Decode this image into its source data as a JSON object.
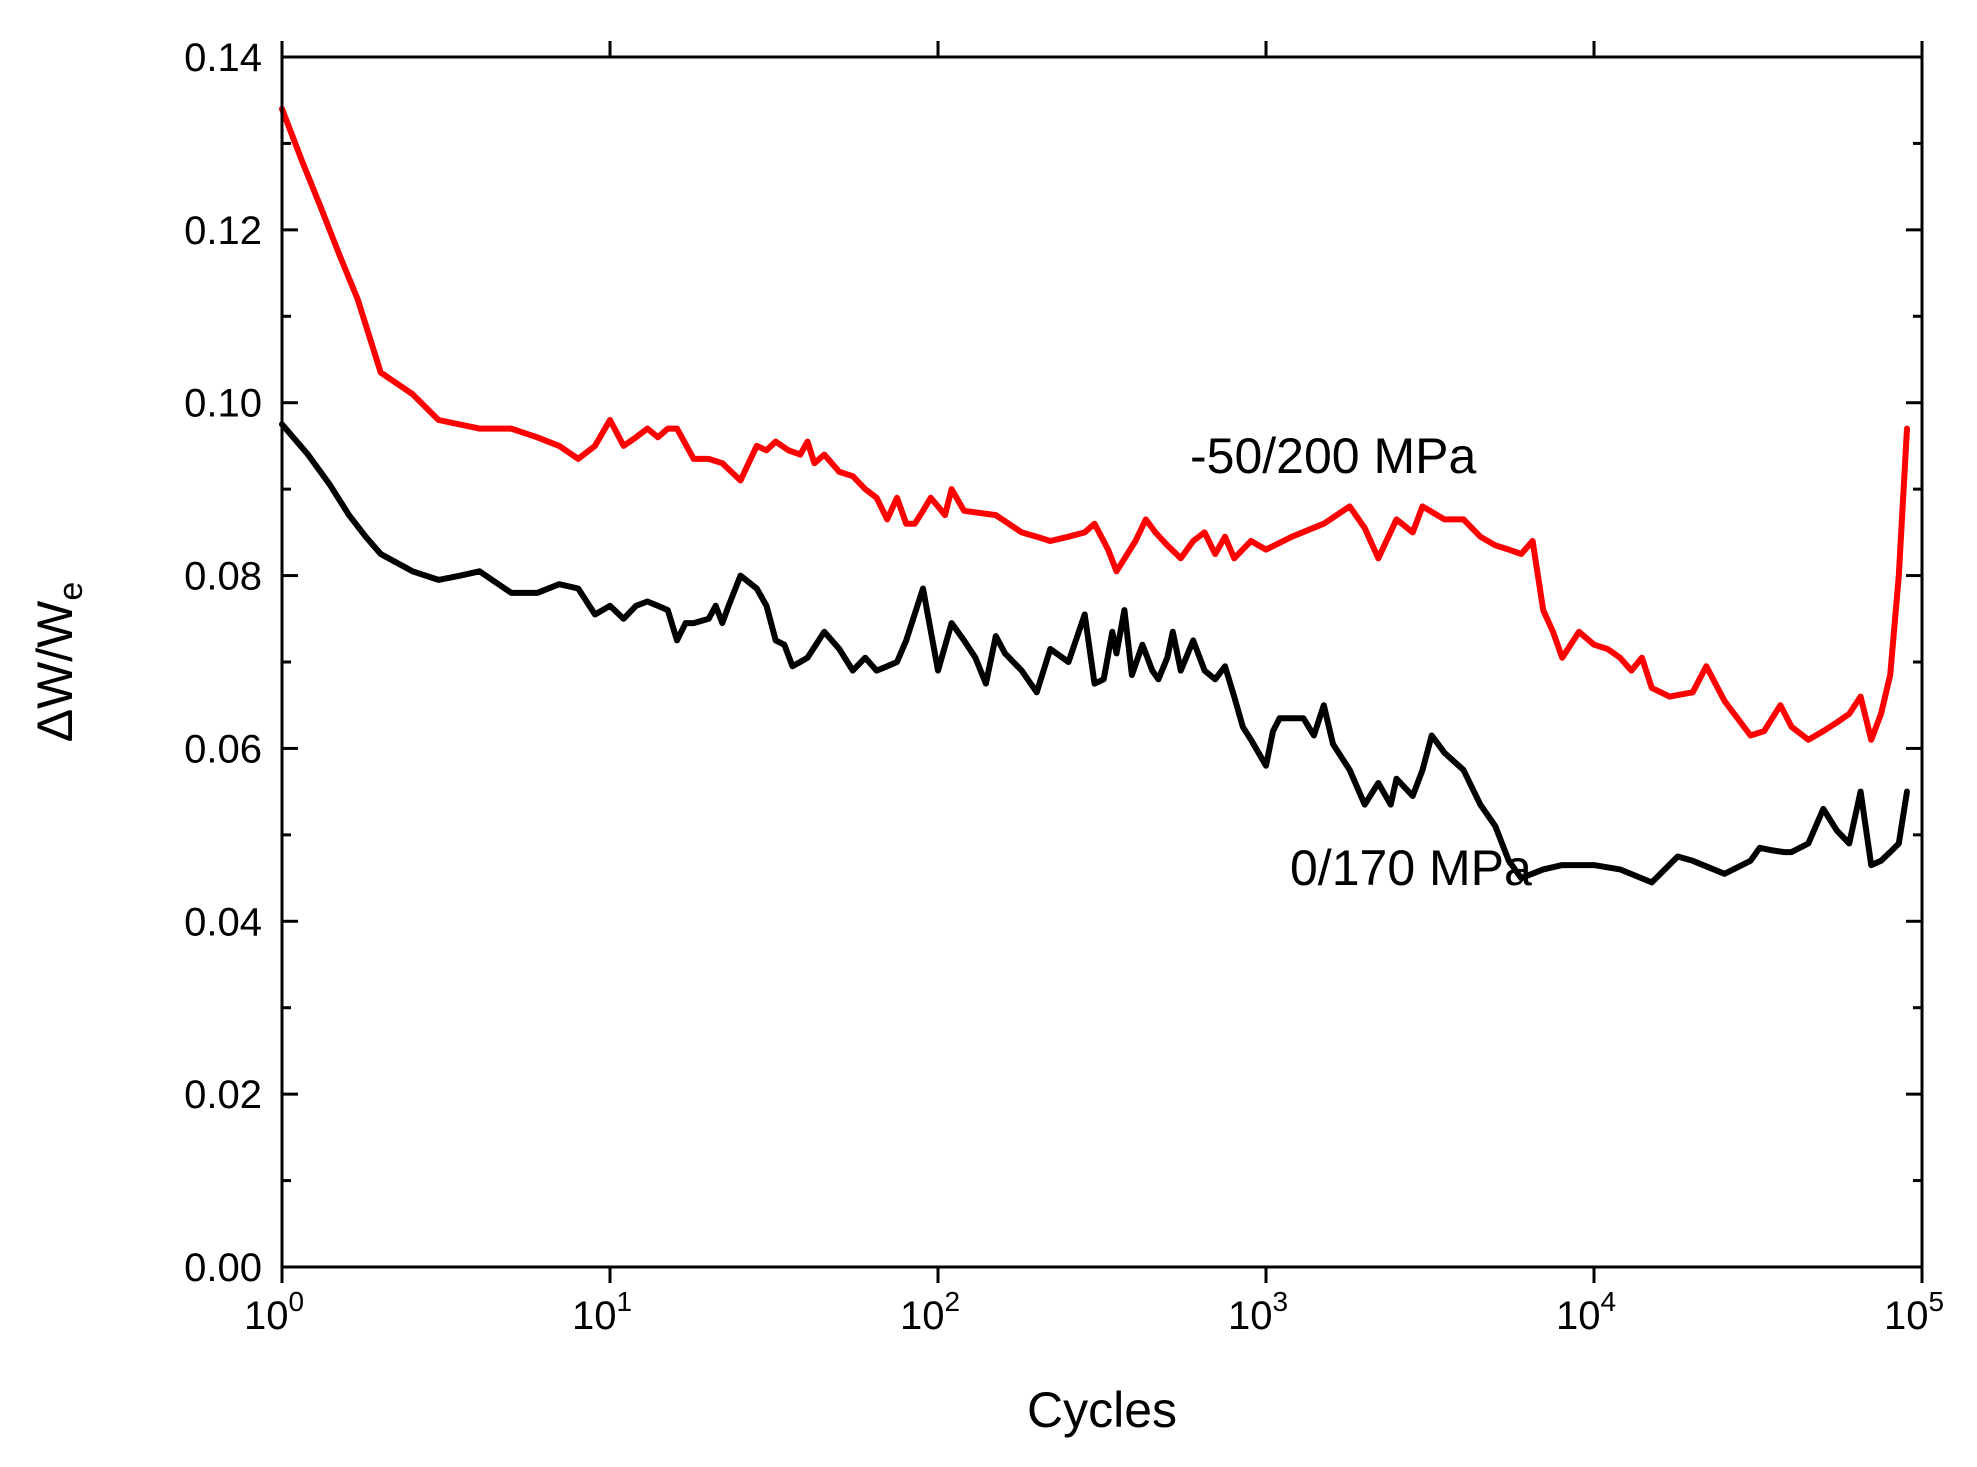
{
  "chart_data": {
    "type": "line",
    "title": "",
    "xlabel": "Cycles",
    "ylabel": "ΔW/W",
    "ylabel_subscript": "e",
    "xscale": "log",
    "xlim": [
      1,
      100000
    ],
    "ylim": [
      0,
      0.14
    ],
    "x_ticks": [
      {
        "base": "10",
        "exp": "0"
      },
      {
        "base": "10",
        "exp": "1"
      },
      {
        "base": "10",
        "exp": "2"
      },
      {
        "base": "10",
        "exp": "3"
      },
      {
        "base": "10",
        "exp": "4"
      },
      {
        "base": "10",
        "exp": "5"
      }
    ],
    "y_ticks": [
      "0.00",
      "0.02",
      "0.04",
      "0.06",
      "0.08",
      "0.10",
      "0.12",
      "0.14"
    ],
    "grid": false,
    "series": [
      {
        "name": "-50/200 MPa",
        "color": "#ff0000",
        "x": [
          1,
          1.15,
          1.3,
          1.5,
          1.7,
          2,
          2.5,
          3,
          4,
          5,
          6,
          7,
          8,
          9,
          10,
          11,
          12,
          13,
          14,
          15,
          16,
          18,
          20,
          22,
          25,
          28,
          30,
          32,
          35,
          38,
          40,
          42,
          45,
          50,
          55,
          60,
          65,
          70,
          75,
          80,
          85,
          90,
          95,
          100,
          105,
          110,
          120,
          150,
          180,
          200,
          220,
          250,
          280,
          300,
          330,
          350,
          400,
          430,
          460,
          500,
          550,
          600,
          650,
          700,
          750,
          800,
          900,
          1000,
          1200,
          1500,
          1800,
          2000,
          2200,
          2500,
          2800,
          3000,
          3500,
          4000,
          4500,
          5000,
          5500,
          6000,
          6500,
          7000,
          7500,
          8000,
          9000,
          10000,
          11000,
          12000,
          13000,
          14000,
          15000,
          17000,
          20000,
          22000,
          25000,
          28000,
          30000,
          33000,
          37000,
          40000,
          45000,
          50000,
          55000,
          60000,
          65000,
          70000,
          75000,
          80000,
          85000,
          90000
        ],
        "y": [
          0.134,
          0.128,
          0.123,
          0.117,
          0.112,
          0.1035,
          0.101,
          0.098,
          0.097,
          0.097,
          0.096,
          0.095,
          0.0935,
          0.095,
          0.098,
          0.095,
          0.096,
          0.097,
          0.096,
          0.097,
          0.097,
          0.0935,
          0.0935,
          0.093,
          0.091,
          0.095,
          0.0945,
          0.0955,
          0.0945,
          0.094,
          0.0955,
          0.093,
          0.094,
          0.092,
          0.0915,
          0.09,
          0.089,
          0.0865,
          0.089,
          0.086,
          0.086,
          0.0875,
          0.089,
          0.088,
          0.087,
          0.09,
          0.0875,
          0.087,
          0.085,
          0.0845,
          0.084,
          0.0845,
          0.085,
          0.086,
          0.083,
          0.0805,
          0.084,
          0.0865,
          0.085,
          0.0835,
          0.082,
          0.084,
          0.085,
          0.0825,
          0.0845,
          0.082,
          0.084,
          0.083,
          0.0845,
          0.086,
          0.088,
          0.0855,
          0.082,
          0.0865,
          0.085,
          0.088,
          0.0865,
          0.0865,
          0.0845,
          0.0835,
          0.083,
          0.0825,
          0.084,
          0.076,
          0.0735,
          0.0705,
          0.0735,
          0.072,
          0.0715,
          0.0705,
          0.069,
          0.0705,
          0.067,
          0.066,
          0.0665,
          0.0695,
          0.0655,
          0.063,
          0.0615,
          0.062,
          0.065,
          0.0625,
          0.061,
          0.062,
          0.063,
          0.064,
          0.066,
          0.061,
          0.064,
          0.0685,
          0.08,
          0.097
        ]
      },
      {
        "name": "0/170 MPa",
        "color": "#000000",
        "x": [
          1,
          1.2,
          1.4,
          1.6,
          1.8,
          2,
          2.5,
          3,
          3.5,
          4,
          5,
          6,
          7,
          8,
          9,
          10,
          11,
          12,
          13,
          14,
          15,
          16,
          17,
          18,
          20,
          21,
          22,
          23,
          25,
          28,
          30,
          32,
          34,
          36,
          38,
          40,
          45,
          50,
          55,
          60,
          65,
          70,
          75,
          80,
          90,
          100,
          110,
          120,
          130,
          140,
          150,
          160,
          180,
          200,
          220,
          250,
          280,
          300,
          320,
          340,
          350,
          370,
          390,
          420,
          450,
          470,
          500,
          520,
          550,
          600,
          650,
          700,
          750,
          800,
          850,
          900,
          1000,
          1050,
          1100,
          1200,
          1300,
          1400,
          1500,
          1600,
          1800,
          2000,
          2200,
          2400,
          2500,
          2800,
          3000,
          3200,
          3500,
          4000,
          4500,
          5000,
          5500,
          6000,
          7000,
          8000,
          10000,
          12000,
          15000,
          18000,
          20000,
          25000,
          30000,
          32000,
          35000,
          38000,
          40000,
          45000,
          50000,
          55000,
          60000,
          65000,
          70000,
          75000,
          80000,
          85000,
          90000
        ],
        "y": [
          0.0975,
          0.094,
          0.0905,
          0.087,
          0.0845,
          0.0825,
          0.0805,
          0.0795,
          0.08,
          0.0805,
          0.078,
          0.078,
          0.079,
          0.0785,
          0.0755,
          0.0765,
          0.075,
          0.0765,
          0.077,
          0.0765,
          0.076,
          0.0725,
          0.0745,
          0.0745,
          0.075,
          0.0765,
          0.0745,
          0.0765,
          0.08,
          0.0785,
          0.0765,
          0.0725,
          0.072,
          0.0695,
          0.07,
          0.0705,
          0.0735,
          0.0715,
          0.069,
          0.0705,
          0.069,
          0.0695,
          0.07,
          0.0725,
          0.0785,
          0.069,
          0.0745,
          0.0725,
          0.0705,
          0.0675,
          0.073,
          0.071,
          0.069,
          0.0665,
          0.0715,
          0.07,
          0.0755,
          0.0675,
          0.068,
          0.0735,
          0.071,
          0.076,
          0.0685,
          0.072,
          0.069,
          0.068,
          0.0705,
          0.0735,
          0.069,
          0.0725,
          0.069,
          0.068,
          0.0695,
          0.066,
          0.0625,
          0.061,
          0.058,
          0.062,
          0.0635,
          0.0635,
          0.0635,
          0.0615,
          0.065,
          0.0605,
          0.0575,
          0.0535,
          0.056,
          0.0535,
          0.0565,
          0.0545,
          0.0575,
          0.0615,
          0.0595,
          0.0575,
          0.0535,
          0.051,
          0.047,
          0.045,
          0.046,
          0.0465,
          0.0465,
          0.046,
          0.0445,
          0.0475,
          0.047,
          0.0455,
          0.047,
          0.0485,
          0.0482,
          0.048,
          0.048,
          0.049,
          0.053,
          0.0505,
          0.049,
          0.055,
          0.0465,
          0.047,
          0.048,
          0.049,
          0.055
        ]
      }
    ],
    "annotations": [
      {
        "text": "-50/200 MPa",
        "series": "-50/200 MPa"
      },
      {
        "text": "0/170 MPa",
        "series": "0/170 MPa"
      }
    ]
  }
}
